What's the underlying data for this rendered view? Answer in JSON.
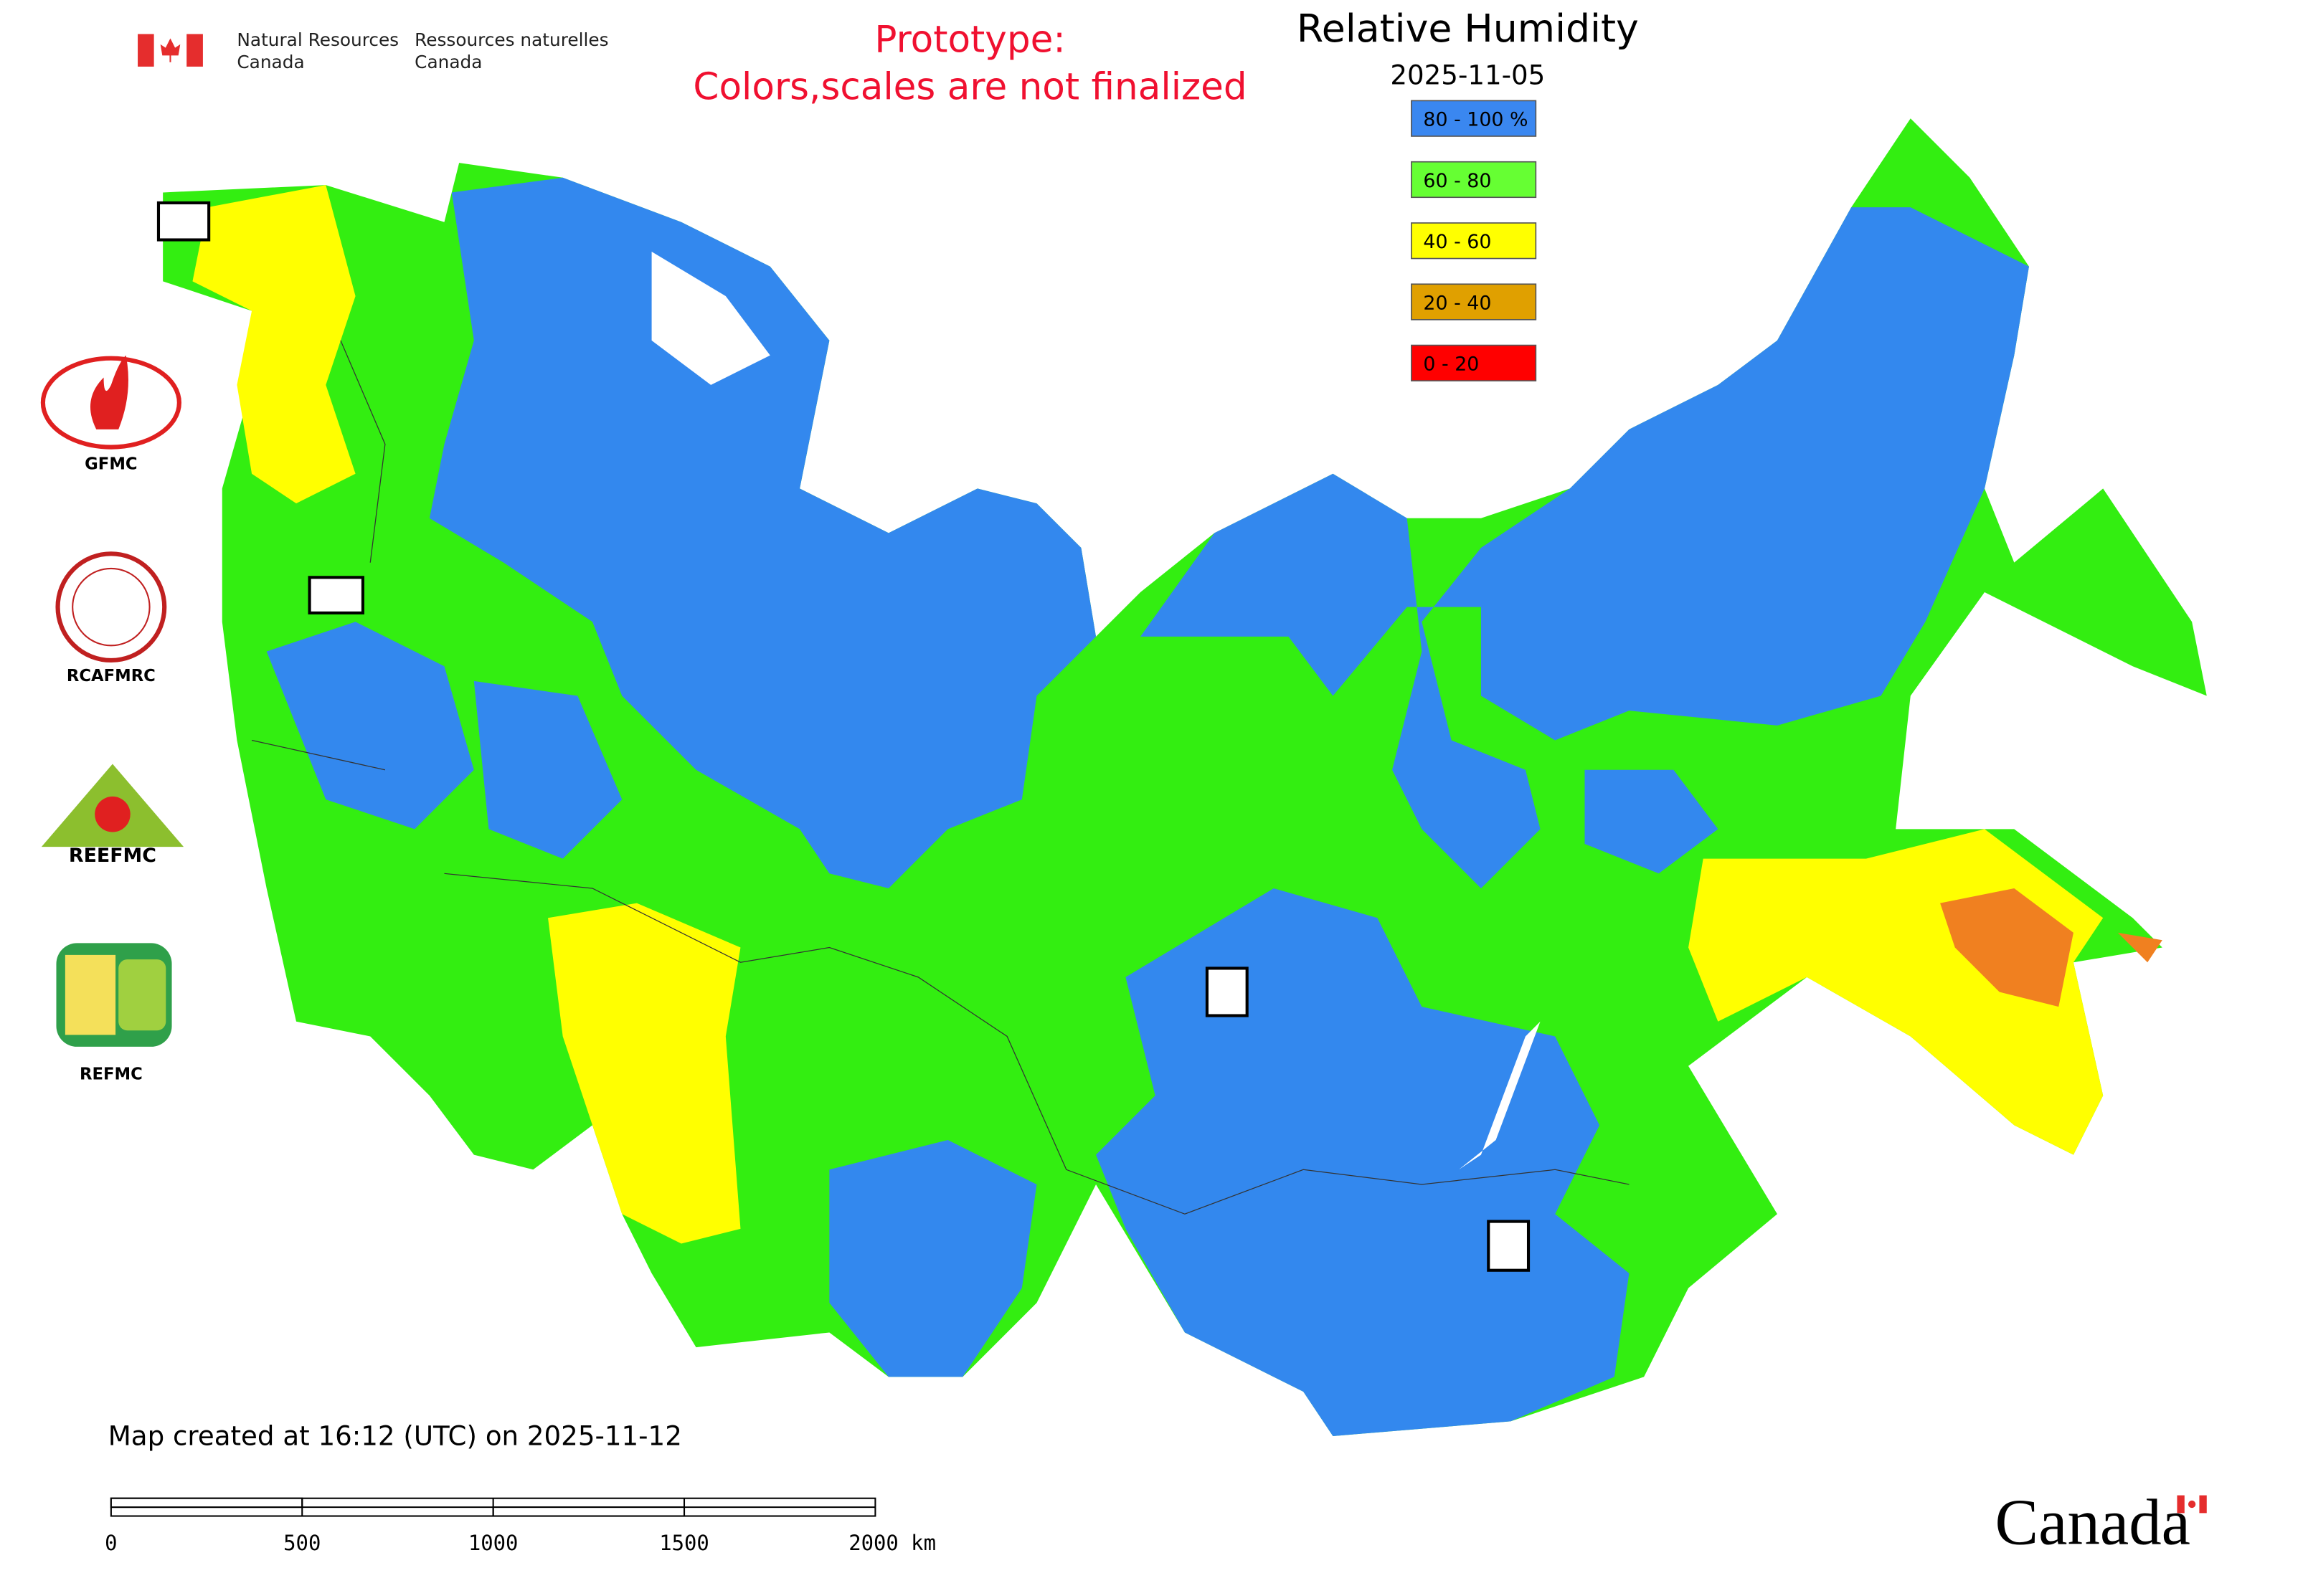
{
  "header": {
    "agency_en_line1": "Natural Resources",
    "agency_en_line2": "Canada",
    "agency_fr_line1": "Ressources naturelles",
    "agency_fr_line2": "Canada"
  },
  "prototype_note": [
    "Prototype:",
    "Colors,scales are not finalized"
  ],
  "title": "Relative Humidity",
  "date": "2025-11-05",
  "legend": [
    {
      "label": "80 - 100 %",
      "color": "#3a87f0"
    },
    {
      "label": "60 - 80",
      "color": "#66ff33"
    },
    {
      "label": "40 - 60",
      "color": "#ffff00"
    },
    {
      "label": "20 - 40",
      "color": "#e0a000"
    },
    {
      "label": "0 - 20",
      "color": "#ff0000"
    }
  ],
  "logos": [
    "GFMC",
    "RCAFMRC",
    "REEFMC",
    "REFMC"
  ],
  "footer": {
    "created": "Map created at 16:12 (UTC) on 2025-11-12",
    "scale_labels": [
      "0",
      "500",
      "1000",
      "1500",
      "2000 km"
    ],
    "wordmark": "Canada"
  }
}
